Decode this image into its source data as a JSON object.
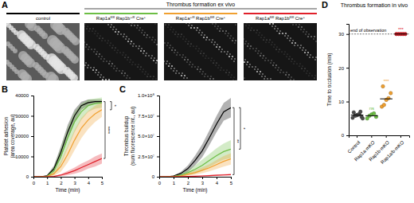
{
  "panel_a": {
    "letter": "A",
    "header": "Thrombus formation ex vivo",
    "images": [
      {
        "color": "#000000",
        "label": [
          {
            "text": "control"
          }
        ]
      },
      {
        "color": "#6dbe45",
        "label": [
          {
            "text": "Rap1a"
          },
          {
            "text": "fl/fl",
            "sup": true
          },
          {
            "text": " Rap1b"
          },
          {
            "text": "+/fl",
            "sup": true
          },
          {
            "text": " Cre"
          },
          {
            "text": "+",
            "sup": true
          }
        ]
      },
      {
        "color": "#f0a030",
        "label": [
          {
            "text": "Rap1a"
          },
          {
            "text": "+/fl",
            "sup": true
          },
          {
            "text": " Rap1b"
          },
          {
            "text": "fl/fl",
            "sup": true
          },
          {
            "text": " Cre"
          },
          {
            "text": "+",
            "sup": true
          }
        ]
      },
      {
        "color": "#e0202a",
        "label": [
          {
            "text": "Rap1a"
          },
          {
            "text": "fl/fl",
            "sup": true
          },
          {
            "text": " Rap1b"
          },
          {
            "text": "fl/fl",
            "sup": true
          },
          {
            "text": " Cre"
          },
          {
            "text": "+",
            "sup": true
          }
        ]
      }
    ]
  },
  "chart_data": [
    {
      "panel": "B",
      "type": "line",
      "ylabel": [
        "Platelet adhesion",
        "(area coverage, au)"
      ],
      "xlabel": "Time (min)",
      "x": [
        0,
        0.5,
        1,
        1.5,
        2,
        2.5,
        3,
        3.5,
        4,
        4.5,
        5
      ],
      "xlim": [
        0,
        5
      ],
      "xticks": [
        0,
        1,
        2,
        3,
        4,
        5
      ],
      "ylim": [
        0,
        40000
      ],
      "yticks": [
        0,
        10000,
        20000,
        30000,
        40000
      ],
      "series": [
        {
          "color": "#000000",
          "values": [
            0,
            0,
            500,
            4000,
            12000,
            22000,
            30000,
            35000,
            36500,
            37000,
            37000
          ],
          "error": [
            0,
            0,
            300,
            1500,
            3000,
            3500,
            3000,
            2000,
            1500,
            1000,
            1000
          ]
        },
        {
          "color": "#6dbe45",
          "values": [
            0,
            0,
            300,
            3000,
            10000,
            19000,
            27000,
            32000,
            35000,
            36000,
            36500
          ],
          "error": [
            0,
            0,
            300,
            2000,
            4000,
            5000,
            5000,
            4000,
            3000,
            2500,
            2500
          ]
        },
        {
          "color": "#f0a030",
          "values": [
            0,
            0,
            200,
            1500,
            5000,
            11000,
            18000,
            24000,
            28000,
            31000,
            33000
          ],
          "error": [
            0,
            0,
            200,
            1000,
            2500,
            4000,
            5000,
            5000,
            4500,
            4000,
            3500
          ]
        },
        {
          "color": "#e0202a",
          "values": [
            0,
            0,
            0,
            200,
            800,
            1800,
            3000,
            4500,
            6000,
            7500,
            9000
          ],
          "error": [
            0,
            0,
            0,
            200,
            500,
            1000,
            1500,
            2000,
            2000,
            2500,
            2500
          ]
        }
      ],
      "brackets": [
        {
          "label": "****",
          "series": [
            0,
            3
          ]
        },
        {
          "label": "*",
          "series": [
            0,
            2
          ]
        }
      ]
    },
    {
      "panel": "C",
      "type": "line",
      "ylabel": [
        "Thrombus buildup",
        "(sum fluorescence int., au)"
      ],
      "xlabel": "Time (min)",
      "x": [
        0,
        0.5,
        1,
        1.5,
        2,
        2.5,
        3,
        3.5,
        4,
        4.5,
        5
      ],
      "xlim": [
        0,
        5
      ],
      "xticks": [
        0,
        1,
        2,
        3,
        4,
        5
      ],
      "ylim": [
        0,
        100000000
      ],
      "yticks": [
        0,
        {
          "value": 25000000,
          "label": "2.5×10⁷"
        },
        {
          "value": 50000000,
          "label": "5.0×10⁷"
        },
        {
          "value": 75000000,
          "label": "7.5×10⁷"
        },
        {
          "value": 100000000,
          "label": "1.0×10⁸"
        }
      ],
      "series": [
        {
          "color": "#000000",
          "values": [
            0,
            0,
            1000000,
            4000000,
            10000000,
            20000000,
            32000000,
            48000000,
            65000000,
            80000000,
            85000000
          ],
          "error": [
            0,
            0,
            500000,
            2000000,
            4000000,
            6000000,
            8000000,
            9000000,
            10000000,
            11000000,
            12000000
          ]
        },
        {
          "color": "#6dbe45",
          "values": [
            0,
            0,
            500000,
            2000000,
            5000000,
            9000000,
            14000000,
            20000000,
            26000000,
            31000000,
            34000000
          ],
          "error": [
            0,
            0,
            400000,
            1500000,
            3000000,
            5000000,
            7000000,
            8000000,
            9000000,
            10000000,
            11000000
          ]
        },
        {
          "color": "#f0a030",
          "values": [
            0,
            0,
            300000,
            1000000,
            3000000,
            5000000,
            8000000,
            11000000,
            15000000,
            19000000,
            22000000
          ],
          "error": [
            0,
            0,
            200000,
            700000,
            1500000,
            2500000,
            3500000,
            4500000,
            5500000,
            6500000,
            7000000
          ]
        },
        {
          "color": "#e0202a",
          "values": [
            0,
            0,
            0,
            100000,
            300000,
            600000,
            1000000,
            1400000,
            1800000,
            2200000,
            2600000
          ],
          "error": [
            0,
            0,
            0,
            100000,
            200000,
            300000,
            500000,
            700000,
            800000,
            900000,
            1000000
          ]
        }
      ],
      "brackets": [
        {
          "label": "**",
          "series": [
            0,
            3
          ]
        },
        {
          "label": "*",
          "series": [
            0,
            1
          ]
        }
      ]
    },
    {
      "panel": "D",
      "type": "scatter",
      "title": "Thrombus formation in vivo",
      "ylabel": "Time to occlusion (min)",
      "categories": [
        "Control",
        "Rap1a-mKO",
        "Rap1b-mKO",
        "Rap1a/b-mKO"
      ],
      "colors": [
        "#4d4d4d",
        "#6dbe45",
        "#f0a030",
        "#e0202a"
      ],
      "values": [
        [
          5.2,
          5.8,
          6.0,
          6.3,
          5.5,
          6.8,
          5.9,
          6.1,
          7.0,
          5.0
        ],
        [
          5.0,
          5.8,
          6.2,
          6.5,
          5.5
        ],
        [
          8.5,
          9.0,
          10.5,
          11,
          12.5,
          14.5
        ],
        [
          30,
          30,
          30,
          30,
          30
        ]
      ],
      "medians": [
        6.0,
        5.8,
        10.8,
        30
      ],
      "annotations": [
        {
          "category": 1,
          "label": "ns"
        },
        {
          "category": 2,
          "label": "***"
        },
        {
          "category": 3,
          "label": "***"
        }
      ],
      "reference_line": {
        "value": 30,
        "label": "end of observation"
      },
      "ylim": [
        0,
        33
      ],
      "yticks": [
        0,
        10,
        20,
        30
      ]
    }
  ]
}
